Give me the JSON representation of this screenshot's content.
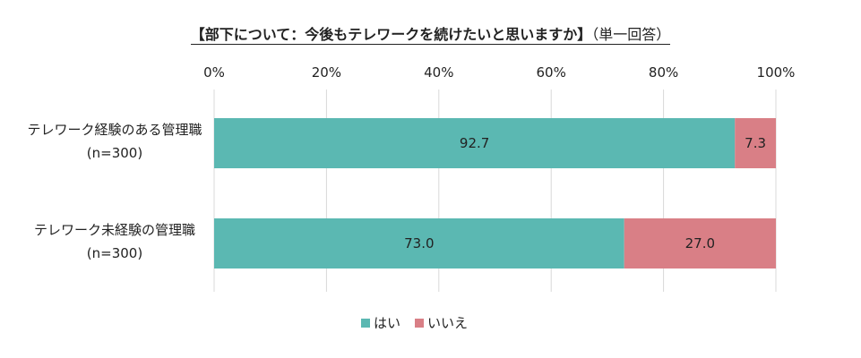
{
  "chart_data": {
    "type": "bar",
    "orientation": "horizontal",
    "stacked": true,
    "title": "【部下について：今後もテレワークを続けたいと思いますか】",
    "subtitle": "（単一回答）",
    "categories": [
      [
        "テレワーク経験のある管理職",
        "(n=300)"
      ],
      [
        "テレワーク未経験の管理職",
        "(n=300)"
      ]
    ],
    "series": [
      {
        "name": "はい",
        "color": "#5bb8b2",
        "values": [
          92.7,
          73.0
        ],
        "labels": [
          "92.7",
          "73.0"
        ]
      },
      {
        "name": "いいえ",
        "color": "#d97f86",
        "values": [
          7.3,
          27.0
        ],
        "labels": [
          "7.3",
          "27.0"
        ]
      }
    ],
    "xlim": [
      0,
      100
    ],
    "x_ticks": [
      0,
      20,
      40,
      60,
      80,
      100
    ],
    "x_tick_labels": [
      "0%",
      "20%",
      "40%",
      "60%",
      "80%",
      "100%"
    ],
    "grid": true,
    "legend_position": "bottom"
  }
}
